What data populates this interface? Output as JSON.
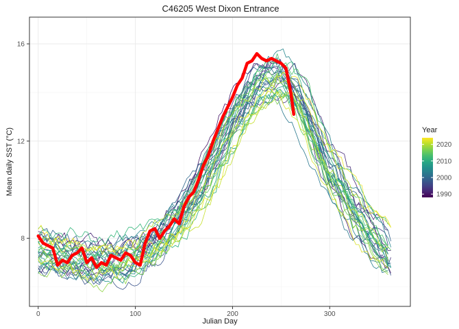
{
  "chart_data": {
    "type": "line",
    "title": "C46205 West Dixon Entrance",
    "xlabel": "Julian Day",
    "ylabel": "Mean daily SST (°C)",
    "xlim": [
      -9,
      383
    ],
    "ylim": [
      5.2,
      17.1
    ],
    "x_ticks": [
      0,
      100,
      200,
      300
    ],
    "y_ticks": [
      8,
      12,
      16
    ],
    "grid": true,
    "legend": {
      "title": "Year",
      "placement": "right",
      "type": "colorbar",
      "range": [
        1988,
        2024
      ],
      "ticks": [
        1990,
        2000,
        2010,
        2020
      ]
    },
    "colors": {
      "highlight": "#ff0000",
      "panel_border": "#333333",
      "grid": "#ebebeb"
    },
    "highlight_series": {
      "x": [
        0,
        5,
        10,
        15,
        20,
        25,
        30,
        35,
        40,
        45,
        50,
        55,
        60,
        65,
        70,
        75,
        80,
        85,
        90,
        95,
        100,
        105,
        110,
        115,
        120,
        125,
        130,
        135,
        140,
        145,
        150,
        155,
        160,
        165,
        170,
        175,
        180,
        185,
        190,
        195,
        200,
        205,
        210,
        215,
        220,
        225,
        230,
        235,
        240,
        245,
        250,
        255,
        260,
        263
      ],
      "y": [
        8.1,
        7.8,
        7.7,
        7.6,
        6.9,
        7.1,
        7.0,
        7.3,
        7.4,
        7.6,
        7.0,
        7.2,
        6.8,
        7.0,
        6.9,
        7.3,
        7.2,
        7.1,
        7.4,
        7.3,
        7.0,
        6.9,
        7.8,
        8.3,
        8.4,
        8.0,
        8.3,
        8.5,
        8.8,
        8.6,
        9.3,
        9.7,
        9.9,
        10.4,
        11.0,
        11.4,
        12.0,
        12.5,
        13.0,
        13.4,
        13.8,
        14.3,
        14.6,
        15.2,
        15.3,
        15.6,
        15.4,
        15.3,
        15.4,
        15.3,
        15.2,
        15.0,
        14.0,
        13.1
      ]
    },
    "series_generator": {
      "count": 34,
      "first_year": 1989,
      "last_year": 2023,
      "x_step": 3,
      "climatology_days": [
        0,
        30,
        60,
        90,
        120,
        150,
        180,
        200,
        220,
        240,
        255,
        270,
        300,
        330,
        365
      ],
      "climatology_sst": [
        7.6,
        7.3,
        7.1,
        7.2,
        7.8,
        9.0,
        11.0,
        12.7,
        14.0,
        14.7,
        14.6,
        13.8,
        11.0,
        9.0,
        7.2
      ]
    }
  }
}
